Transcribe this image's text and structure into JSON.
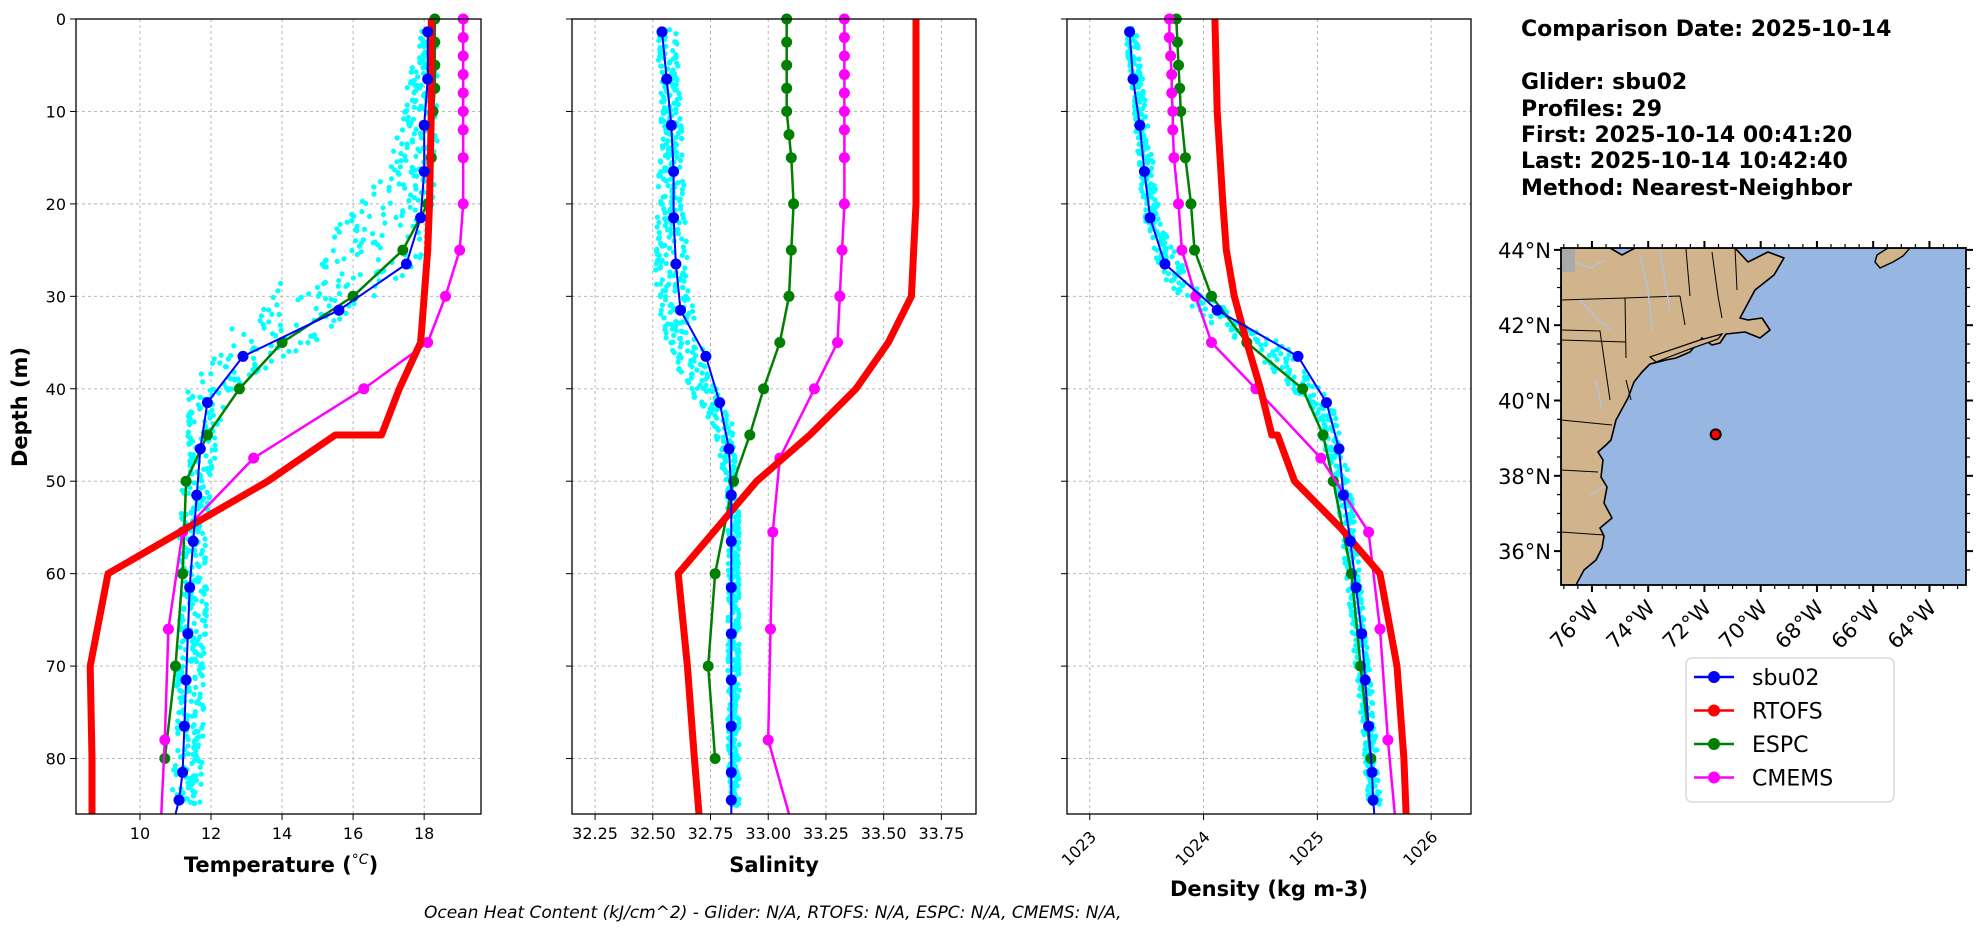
{
  "chart_data": [
    {
      "type": "line",
      "xlabel_main": "Temperature (",
      "xlabel_unit": "°C",
      "xlabel_close": ")",
      "ylabel": "Depth (m)",
      "xlim": [
        8.2,
        19.6
      ],
      "ylim": [
        86,
        0
      ],
      "xticks": [
        10,
        12,
        14,
        16,
        18
      ],
      "yticks": [
        0,
        10,
        20,
        30,
        40,
        50,
        60,
        70,
        80
      ],
      "grid": true,
      "series": [
        {
          "name": "sbu02",
          "color": "#0000ff",
          "marker": true,
          "width": 2,
          "x": [
            18.1,
            18.1,
            18.0,
            18.0,
            17.9,
            17.5,
            15.6,
            12.9,
            11.9,
            11.7,
            11.6,
            11.5,
            11.4,
            11.35,
            11.3,
            11.25,
            11.2,
            11.1,
            11.0
          ],
          "y": [
            1.4,
            6.5,
            11.5,
            16.5,
            21.5,
            26.5,
            31.5,
            36.5,
            41.5,
            46.5,
            51.5,
            56.5,
            61.5,
            66.5,
            71.5,
            76.5,
            81.5,
            84.5,
            86
          ]
        },
        {
          "name": "RTOFS",
          "color": "#ff0000",
          "marker": false,
          "width": 7,
          "x": [
            18.2,
            18.2,
            18.15,
            18.1,
            18.0,
            17.9,
            17.3,
            16.8,
            15.5,
            13.6,
            9.1,
            8.6,
            8.65,
            8.65
          ],
          "y": [
            0,
            10,
            20,
            25,
            30,
            35,
            40,
            45,
            45,
            50,
            60,
            70,
            80,
            86
          ]
        },
        {
          "name": "ESPC",
          "color": "#008000",
          "marker": true,
          "width": 2.5,
          "x": [
            18.3,
            18.3,
            18.3,
            18.3,
            18.25,
            18.2,
            18.1,
            17.4,
            16.0,
            14.0,
            12.8,
            11.9,
            11.3,
            11.2,
            11.0,
            10.7
          ],
          "y": [
            0,
            2.5,
            5,
            7.5,
            10,
            15,
            20,
            25,
            30,
            35,
            40,
            45,
            50,
            60,
            70,
            80
          ]
        },
        {
          "name": "CMEMS",
          "color": "#ff00ff",
          "marker": true,
          "width": 2.5,
          "x": [
            19.1,
            19.1,
            19.1,
            19.1,
            19.1,
            19.1,
            19.1,
            19.1,
            19.1,
            19.0,
            18.6,
            18.1,
            16.3,
            13.2,
            11.2,
            10.8,
            10.7,
            10.6
          ],
          "y": [
            0,
            2,
            4,
            6,
            8,
            10,
            12,
            15,
            20,
            25,
            30,
            35,
            40,
            47.5,
            55.5,
            66,
            78,
            86
          ]
        }
      ],
      "scatter": {
        "name": "sbu02 profiles",
        "color": "#00ffff",
        "x": [
          18.1,
          17.7,
          16.4,
          15.2,
          13.5,
          12.0,
          11.8,
          11.6,
          11.5,
          11.5,
          11.4,
          11.3
        ],
        "y": [
          2,
          16,
          26,
          30,
          35,
          40,
          45,
          50,
          55,
          65,
          75,
          85
        ],
        "spread": [
          0.5,
          1.4,
          3.2,
          3.4,
          2.6,
          1.3,
          0.9,
          0.8,
          0.8,
          0.8,
          0.8,
          0.8
        ]
      }
    },
    {
      "type": "line",
      "xlabel": "Salinity",
      "xlim": [
        32.15,
        33.9
      ],
      "ylim": [
        86,
        0
      ],
      "xticks": [
        32.25,
        32.5,
        32.75,
        33.0,
        33.25,
        33.5,
        33.75
      ],
      "xtick_labels": [
        "32.25",
        "32.50",
        "32.75",
        "33.00",
        "33.25",
        "33.50",
        "33.75"
      ],
      "yticks": [
        0,
        10,
        20,
        30,
        40,
        50,
        60,
        70,
        80
      ],
      "grid": true,
      "series": [
        {
          "name": "sbu02",
          "color": "#0000ff",
          "marker": true,
          "width": 2,
          "x": [
            32.54,
            32.56,
            32.58,
            32.59,
            32.59,
            32.6,
            32.62,
            32.73,
            32.79,
            32.83,
            32.84,
            32.84,
            32.84,
            32.84,
            32.84,
            32.84,
            32.84,
            32.84,
            32.84
          ],
          "y": [
            1.4,
            6.5,
            11.5,
            16.5,
            21.5,
            26.5,
            31.5,
            36.5,
            41.5,
            46.5,
            51.5,
            56.5,
            61.5,
            66.5,
            71.5,
            76.5,
            81.5,
            84.5,
            86
          ]
        },
        {
          "name": "RTOFS",
          "color": "#ff0000",
          "marker": false,
          "width": 7,
          "x": [
            33.64,
            33.64,
            33.64,
            33.63,
            33.62,
            33.52,
            33.38,
            33.18,
            32.95,
            32.61,
            32.65,
            32.68,
            32.7
          ],
          "y": [
            0,
            10,
            20,
            25,
            30,
            35,
            40,
            45,
            50,
            60,
            70,
            80,
            86
          ]
        },
        {
          "name": "ESPC",
          "color": "#008000",
          "marker": true,
          "width": 2.5,
          "x": [
            33.08,
            33.08,
            33.08,
            33.08,
            33.08,
            33.09,
            33.1,
            33.11,
            33.1,
            33.09,
            33.05,
            32.98,
            32.92,
            32.85,
            32.77,
            32.74,
            32.77
          ],
          "y": [
            0,
            2.5,
            5,
            7.5,
            10,
            12.5,
            15,
            20,
            25,
            30,
            35,
            40,
            45,
            50,
            60,
            70,
            80
          ]
        },
        {
          "name": "CMEMS",
          "color": "#ff00ff",
          "marker": true,
          "width": 2.5,
          "x": [
            33.33,
            33.33,
            33.33,
            33.33,
            33.33,
            33.33,
            33.33,
            33.33,
            33.33,
            33.32,
            33.31,
            33.3,
            33.2,
            33.05,
            33.02,
            33.01,
            33.0,
            33.09
          ],
          "y": [
            0,
            2,
            4,
            6,
            8,
            10,
            12,
            15,
            20,
            25,
            30,
            35,
            40,
            47.5,
            55.5,
            66,
            78,
            86
          ]
        }
      ],
      "scatter": {
        "name": "sbu02 profiles",
        "color": "#00ffff",
        "x": [
          32.56,
          32.58,
          32.58,
          32.58,
          32.6,
          32.68,
          32.8,
          32.84,
          32.85,
          32.85,
          32.85,
          32.85
        ],
        "y": [
          2,
          10,
          20,
          26,
          32,
          38,
          44,
          50,
          55,
          65,
          75,
          85
        ],
        "spread": [
          0.09,
          0.09,
          0.12,
          0.14,
          0.16,
          0.14,
          0.09,
          0.05,
          0.05,
          0.05,
          0.05,
          0.05
        ]
      }
    },
    {
      "type": "line",
      "xlabel": "Density (kg m-3)",
      "xlim": [
        1022.8,
        1026.35
      ],
      "ylim": [
        86,
        0
      ],
      "xticks": [
        1023,
        1024,
        1025,
        1026
      ],
      "yticks": [
        0,
        10,
        20,
        30,
        40,
        50,
        60,
        70,
        80
      ],
      "grid": true,
      "series": [
        {
          "name": "sbu02",
          "color": "#0000ff",
          "marker": true,
          "width": 2,
          "x": [
            1023.35,
            1023.38,
            1023.44,
            1023.48,
            1023.53,
            1023.66,
            1024.12,
            1024.83,
            1025.08,
            1025.19,
            1025.23,
            1025.29,
            1025.34,
            1025.39,
            1025.42,
            1025.45,
            1025.48,
            1025.49,
            1025.5
          ],
          "y": [
            1.4,
            6.5,
            11.5,
            16.5,
            21.5,
            26.5,
            31.5,
            36.5,
            41.5,
            46.5,
            51.5,
            56.5,
            61.5,
            66.5,
            71.5,
            76.5,
            81.5,
            84.5,
            86
          ]
        },
        {
          "name": "RTOFS",
          "color": "#ff0000",
          "marker": false,
          "width": 7,
          "x": [
            1024.1,
            1024.12,
            1024.17,
            1024.2,
            1024.27,
            1024.38,
            1024.5,
            1024.6,
            1024.65,
            1024.8,
            1025.2,
            1025.55,
            1025.7,
            1025.76,
            1025.78
          ],
          "y": [
            0,
            10,
            20,
            25,
            30,
            35,
            40,
            45,
            45,
            50,
            55,
            60,
            70,
            80,
            86
          ]
        },
        {
          "name": "ESPC",
          "color": "#008000",
          "marker": true,
          "width": 2.5,
          "x": [
            1023.76,
            1023.77,
            1023.78,
            1023.79,
            1023.8,
            1023.84,
            1023.89,
            1023.92,
            1024.07,
            1024.38,
            1024.87,
            1025.05,
            1025.14,
            1025.3,
            1025.38,
            1025.47
          ],
          "y": [
            0,
            2.5,
            5,
            7.5,
            10,
            15,
            20,
            25,
            30,
            35,
            40,
            45,
            50,
            60,
            70,
            80
          ]
        },
        {
          "name": "CMEMS",
          "color": "#ff00ff",
          "marker": true,
          "width": 2.5,
          "x": [
            1023.7,
            1023.7,
            1023.71,
            1023.72,
            1023.72,
            1023.73,
            1023.73,
            1023.74,
            1023.78,
            1023.81,
            1023.93,
            1024.07,
            1024.46,
            1025.03,
            1025.45,
            1025.55,
            1025.62,
            1025.68
          ],
          "y": [
            0,
            2,
            4,
            6,
            8,
            10,
            12,
            15,
            20,
            25,
            30,
            35,
            40,
            47.5,
            55.5,
            66,
            78,
            86
          ]
        }
      ],
      "scatter": {
        "name": "sbu02 profiles",
        "color": "#00ffff",
        "x": [
          1023.37,
          1023.46,
          1023.55,
          1023.75,
          1024.1,
          1024.6,
          1025.05,
          1025.22,
          1025.28,
          1025.36,
          1025.45,
          1025.5
        ],
        "y": [
          2,
          12,
          22,
          28,
          32,
          36,
          42,
          50,
          56,
          66,
          76,
          85
        ],
        "spread": [
          0.1,
          0.12,
          0.14,
          0.22,
          0.3,
          0.35,
          0.2,
          0.13,
          0.12,
          0.12,
          0.12,
          0.12
        ]
      }
    }
  ],
  "info": {
    "date_line": "Comparison Date: 2025-10-14",
    "glider_line": "Glider: sbu02",
    "profiles_line": "Profiles: 29",
    "first_line": "First: 2025-10-14 00:41:20",
    "last_line": "Last: 2025-10-14 10:42:40",
    "method_line": "Method: Nearest-Neighbor"
  },
  "map": {
    "lat_ticks": [
      44,
      42,
      40,
      38,
      36
    ],
    "lat_labels": [
      "44°N",
      "42°N",
      "40°N",
      "38°N",
      "36°N"
    ],
    "lon_ticks": [
      -76,
      -74,
      -72,
      -70,
      -68,
      -66,
      -64
    ],
    "lon_labels": [
      "76°W",
      "74°W",
      "72°W",
      "70°W",
      "68°W",
      "66°W",
      "64°W"
    ],
    "extent": {
      "lon": [
        -77.1,
        -62.7
      ],
      "lat": [
        35.1,
        44.05
      ]
    },
    "glider_position": {
      "lon": -71.6,
      "lat": 39.1
    },
    "land_color": "#d2b48c",
    "ocean_color": "#97b6e1",
    "marker_color": "#ff0000"
  },
  "legend": {
    "position": "below-map",
    "items": [
      {
        "label": "sbu02",
        "color": "#0000ff"
      },
      {
        "label": "RTOFS",
        "color": "#ff0000"
      },
      {
        "label": "ESPC",
        "color": "#008000"
      },
      {
        "label": "CMEMS",
        "color": "#ff00ff"
      }
    ]
  },
  "footer": "Ocean Heat Content (kJ/cm^2) - Glider: N/A,  RTOFS: N/A,  ESPC: N/A,  CMEMS: N/A,"
}
